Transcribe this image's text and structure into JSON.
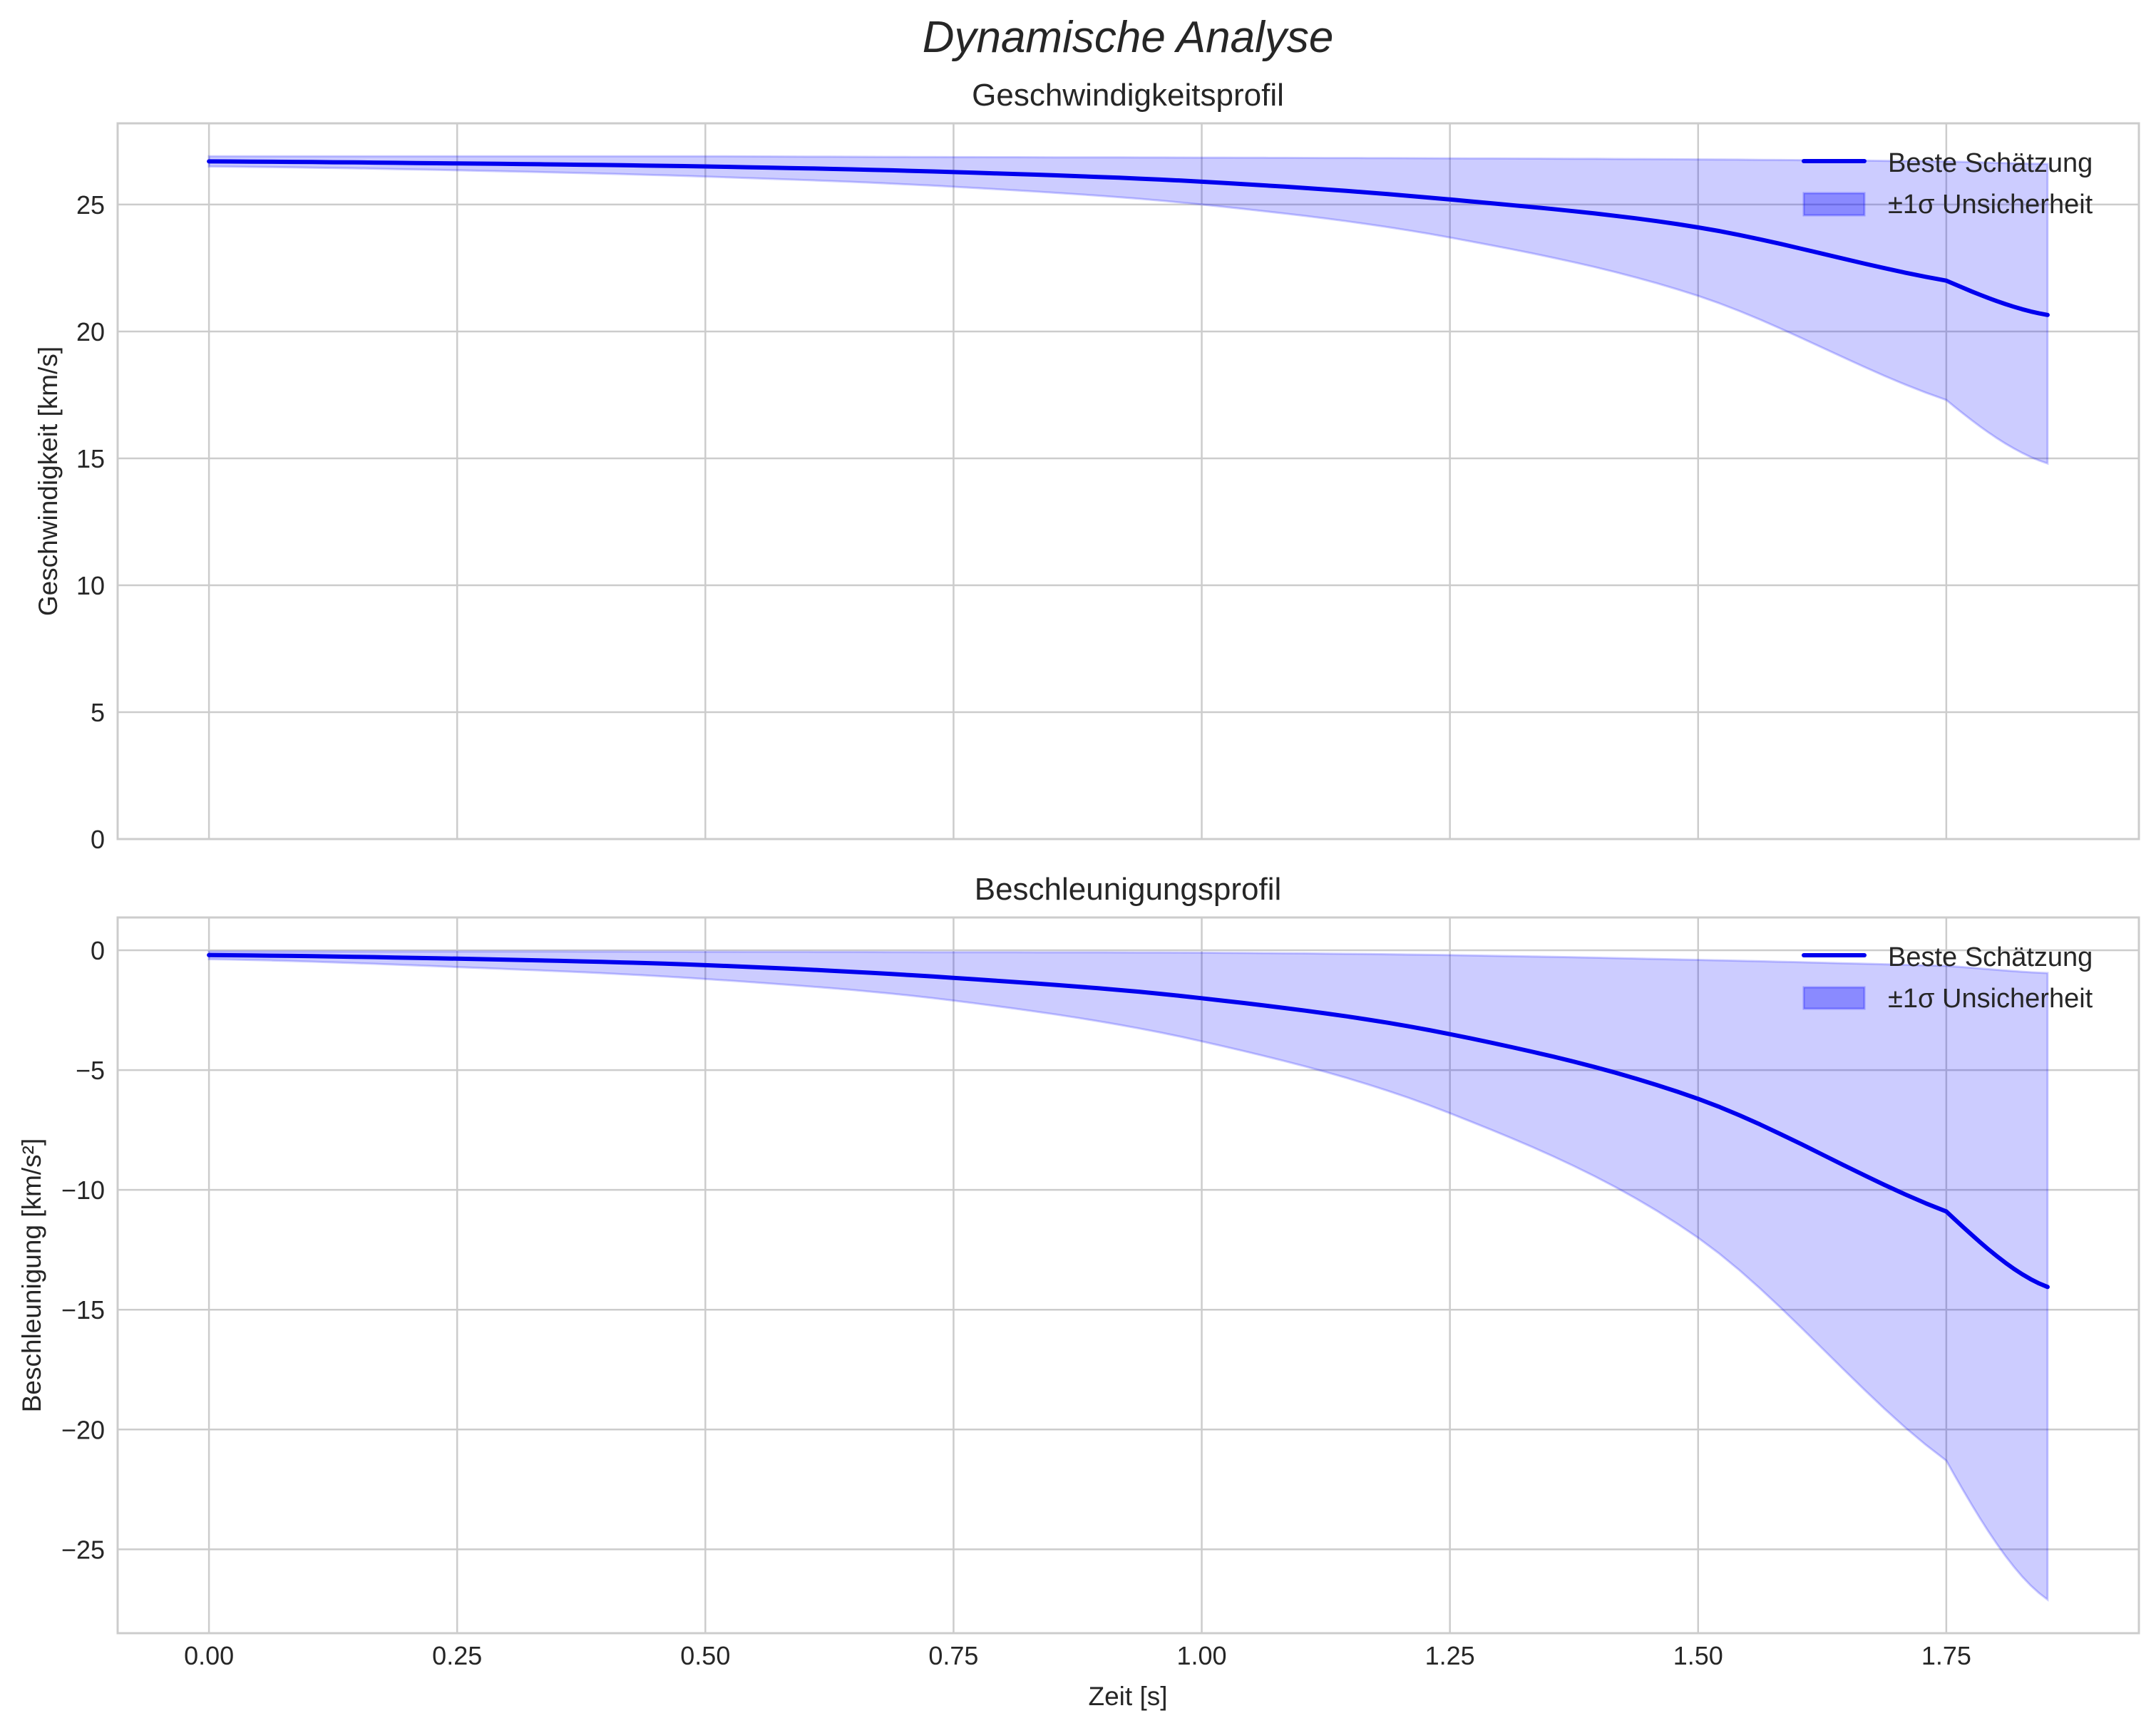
{
  "figure": {
    "title": "Dynamische Analyse",
    "xlabel": "Zeit [s]",
    "x_ticks": [
      "0.00",
      "0.25",
      "0.50",
      "0.75",
      "1.00",
      "1.25",
      "1.50",
      "1.75"
    ]
  },
  "colors": {
    "line": "#0000ee",
    "band_fill": "#0000ff",
    "band_alpha": 0.2,
    "grid": "#cccccc",
    "spine": "#cccccc",
    "text": "#262626"
  },
  "legend": {
    "line_label": "Beste Schätzung",
    "band_label": "±1σ Unsicherheit"
  },
  "panels": [
    {
      "title": "Geschwindigkeitsprofil",
      "ylabel": "Geschwindigkeit [km/s]",
      "y_ticks": [
        "0",
        "5",
        "10",
        "15",
        "20",
        "25"
      ]
    },
    {
      "title": "Beschleunigungsprofil",
      "ylabel": "Beschleunigung [km/s²]",
      "y_ticks": [
        "0",
        "−5",
        "−10",
        "−15",
        "−20",
        "−25"
      ]
    }
  ],
  "chart_data": [
    {
      "type": "line",
      "title": "Geschwindigkeitsprofil",
      "suptitle": "Dynamische Analyse",
      "xlabel": "",
      "ylabel": "Geschwindigkeit [km/s]",
      "xlim": [
        -0.092,
        1.944
      ],
      "ylim": [
        0,
        28.2
      ],
      "y_tick_values": [
        0,
        5,
        10,
        15,
        20,
        25
      ],
      "x_tick_values": [
        0,
        0.25,
        0.5,
        0.75,
        1.0,
        1.25,
        1.5,
        1.75
      ],
      "grid": true,
      "legend_position": "upper right",
      "x": [
        0,
        0.25,
        0.5,
        0.75,
        1.0,
        1.25,
        1.5,
        1.75,
        1.852
      ],
      "series": [
        {
          "name": "Beste Schätzung",
          "kind": "line",
          "values": [
            26.7,
            26.62,
            26.5,
            26.28,
            25.9,
            25.2,
            24.1,
            22.0,
            20.65
          ]
        },
        {
          "name": "±1σ Unsicherheit (lower)",
          "kind": "band_lower",
          "values": [
            26.5,
            26.35,
            26.1,
            25.7,
            25.0,
            23.7,
            21.4,
            17.3,
            14.8
          ]
        },
        {
          "name": "±1σ Unsicherheit (upper)",
          "kind": "band_upper",
          "values": [
            26.9,
            26.9,
            26.9,
            26.87,
            26.85,
            26.82,
            26.78,
            26.7,
            26.6
          ]
        }
      ]
    },
    {
      "type": "line",
      "title": "Beschleunigungsprofil",
      "xlabel": "Zeit [s]",
      "ylabel": "Beschleunigung [km/s²]",
      "xlim": [
        -0.092,
        1.944
      ],
      "ylim": [
        -28.5,
        1.37
      ],
      "y_tick_values": [
        0,
        -5,
        -10,
        -15,
        -20,
        -25
      ],
      "x_tick_values": [
        0,
        0.25,
        0.5,
        0.75,
        1.0,
        1.25,
        1.5,
        1.75
      ],
      "grid": true,
      "legend_position": "upper right",
      "x": [
        0,
        0.25,
        0.5,
        0.75,
        1.0,
        1.25,
        1.5,
        1.75,
        1.852
      ],
      "series": [
        {
          "name": "Beste Schätzung",
          "kind": "line",
          "values": [
            -0.2,
            -0.35,
            -0.62,
            -1.15,
            -2.0,
            -3.5,
            -6.2,
            -10.9,
            -14.05
          ]
        },
        {
          "name": "±1σ Unsicherheit (lower)",
          "kind": "band_lower",
          "values": [
            -0.37,
            -0.7,
            -1.2,
            -2.1,
            -3.8,
            -6.8,
            -12.0,
            -21.3,
            -27.1
          ]
        },
        {
          "name": "±1σ Unsicherheit (upper)",
          "kind": "band_upper",
          "values": [
            -0.05,
            -0.05,
            -0.06,
            -0.08,
            -0.1,
            -0.2,
            -0.4,
            -0.65,
            -0.95
          ]
        }
      ]
    }
  ]
}
